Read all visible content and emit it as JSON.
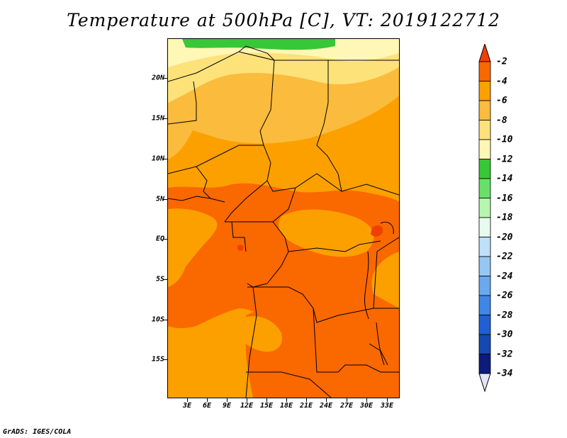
{
  "title": "Temperature at 500hPa [C], VT: 2019122712",
  "footer": "GrADS: IGES/COLA",
  "map": {
    "lat_labels": [
      "20N",
      "15N",
      "10N",
      "5N",
      "EQ",
      "5S",
      "10S",
      "15S"
    ],
    "lon_labels": [
      "3E",
      "6E",
      "9E",
      "12E",
      "15E",
      "18E",
      "21E",
      "24E",
      "27E",
      "30E",
      "33E"
    ]
  },
  "legend": {
    "labels": [
      "-2",
      "-4",
      "-6",
      "-8",
      "-10",
      "-12",
      "-14",
      "-16",
      "-18",
      "-20",
      "-22",
      "-24",
      "-26",
      "-28",
      "-30",
      "-32",
      "-34"
    ],
    "colors": [
      "#f04000",
      "#fa6800",
      "#fca000",
      "#fbbb3c",
      "#fde27a",
      "#fff7b6",
      "#37c837",
      "#68e068",
      "#b6f7b0",
      "#e9fbf0",
      "#bfe0fa",
      "#95c7f4",
      "#6ba9ef",
      "#3f86e6",
      "#1f60d4",
      "#1648b2",
      "#0b1c7c",
      "#e4e4fa"
    ]
  },
  "chart_data": {
    "type": "heatmap",
    "title": "Temperature at 500hPa [C], VT: 2019122712",
    "units": "C",
    "x_ticks": [
      "3E",
      "6E",
      "9E",
      "12E",
      "15E",
      "18E",
      "21E",
      "24E",
      "27E",
      "30E",
      "33E"
    ],
    "y_ticks": [
      "20N",
      "15N",
      "10N",
      "5N",
      "EQ",
      "5S",
      "10S",
      "15S"
    ],
    "colorbar_levels": [
      -2,
      -4,
      -6,
      -8,
      -10,
      -12,
      -14,
      -16,
      -18,
      -20,
      -22,
      -24,
      -26,
      -28,
      -30,
      -32,
      -34
    ]
  }
}
